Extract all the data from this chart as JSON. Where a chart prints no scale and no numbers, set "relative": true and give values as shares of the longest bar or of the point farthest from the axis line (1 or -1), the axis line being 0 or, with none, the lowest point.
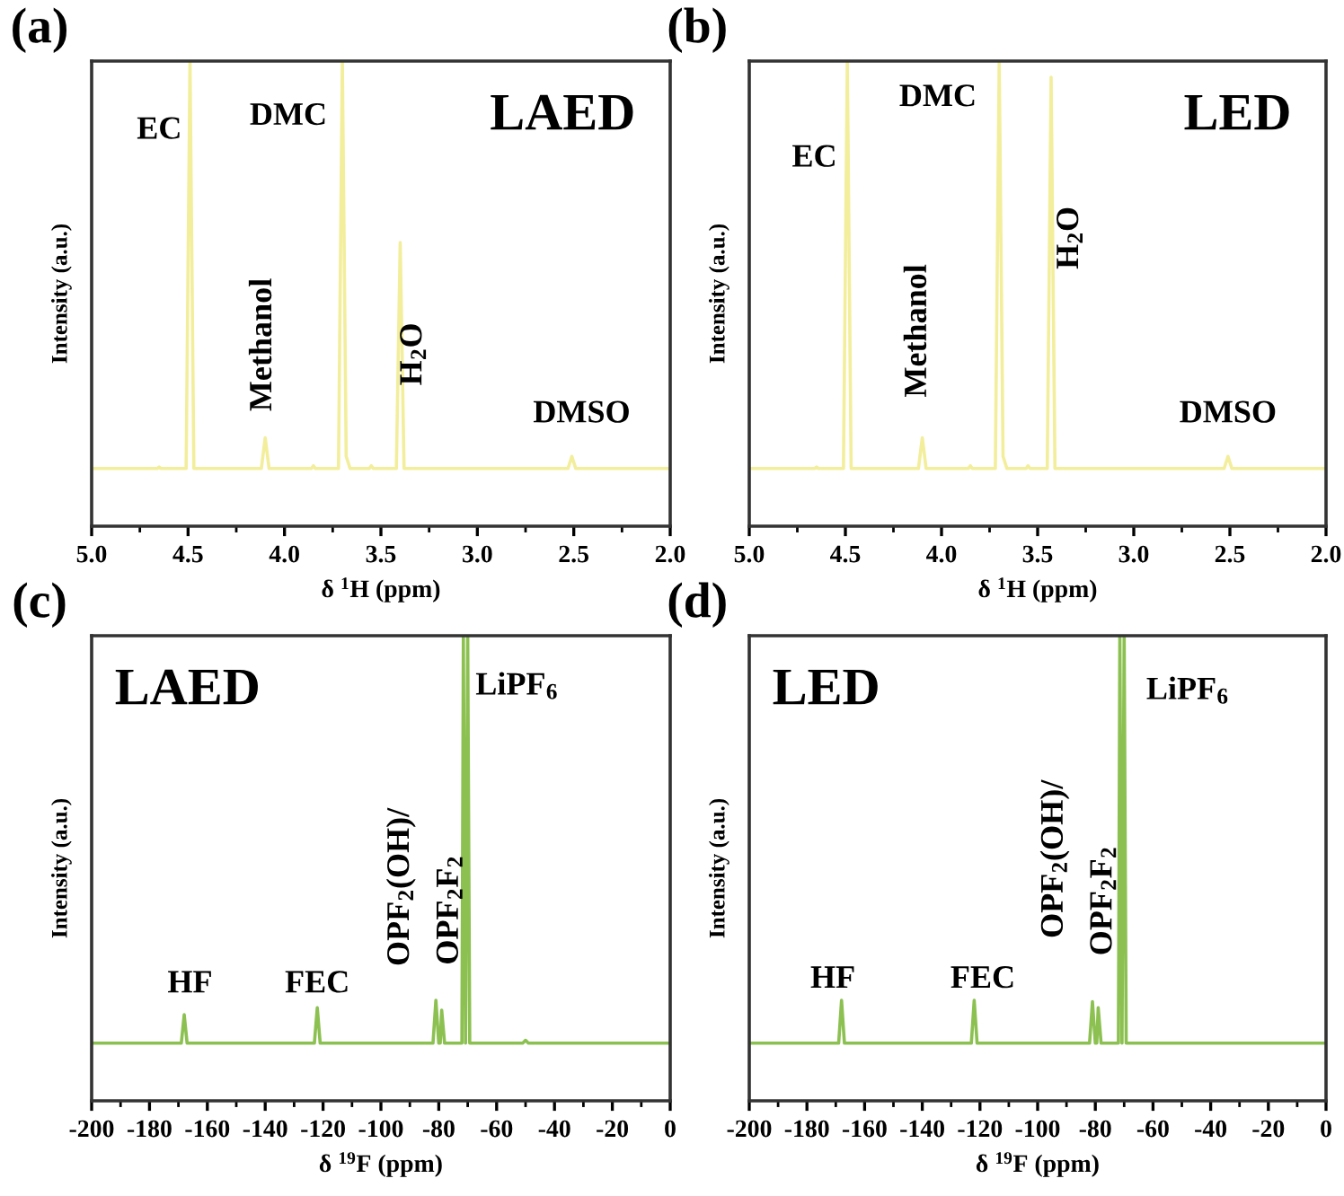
{
  "chart_data": [
    {
      "type": "line",
      "title": "(a)",
      "subtitle": "LAED",
      "xlabel": "δ $^{1}$H (ppm)",
      "ylabel": "Intensity (a.u.)",
      "relative": true,
      "tick_labels": "x",
      "xlim": [
        5.0,
        2.0
      ],
      "xticks": [
        {
          "value": 5.0,
          "label": "5.0"
        },
        {
          "value": 4.5,
          "label": "4.5"
        },
        {
          "value": 4.0,
          "label": "4.0"
        },
        {
          "value": 3.5,
          "label": "3.5"
        },
        {
          "value": 3.0,
          "label": "3.0"
        },
        {
          "value": 2.5,
          "label": "2.5"
        },
        {
          "value": 2.0,
          "label": "2.0"
        }
      ],
      "grid": false,
      "legend": false,
      "series": [
        {
          "color": "#f3ee9c",
          "x": [
            5.0,
            4.66,
            4.65,
            4.64,
            4.51,
            4.49,
            4.47,
            4.12,
            4.1,
            4.08,
            3.86,
            3.85,
            3.84,
            3.72,
            3.7,
            3.68,
            3.66,
            3.56,
            3.55,
            3.54,
            3.42,
            3.4,
            3.38,
            2.53,
            2.51,
            2.49,
            2.0
          ],
          "values": [
            0.124,
            0.124,
            0.127,
            0.124,
            0.124,
            1.0,
            0.124,
            0.124,
            0.19,
            0.124,
            0.124,
            0.13,
            0.124,
            0.124,
            1.0,
            0.15,
            0.124,
            0.124,
            0.13,
            0.124,
            0.124,
            0.61,
            0.124,
            0.124,
            0.15,
            0.124,
            0.124
          ]
        }
      ],
      "annotations": [
        "EC",
        "DMC",
        "Methanol",
        "H$_{2}$O",
        "DMSO"
      ]
    },
    {
      "type": "line",
      "title": "(b)",
      "subtitle": "LED",
      "xlabel": "δ $^{1}$H (ppm)",
      "ylabel": "Intensity (a.u.)",
      "relative": true,
      "tick_labels": "x",
      "xlim": [
        5.0,
        2.0
      ],
      "xticks": [
        {
          "value": 5.0,
          "label": "5.0"
        },
        {
          "value": 4.5,
          "label": "4.5"
        },
        {
          "value": 4.0,
          "label": "4.0"
        },
        {
          "value": 3.5,
          "label": "3.5"
        },
        {
          "value": 3.0,
          "label": "3.0"
        },
        {
          "value": 2.5,
          "label": "2.5"
        },
        {
          "value": 2.0,
          "label": "2.0"
        }
      ],
      "grid": false,
      "legend": false,
      "series": [
        {
          "color": "#f3ee9c",
          "x": [
            5.0,
            4.66,
            4.65,
            4.64,
            4.51,
            4.49,
            4.47,
            4.12,
            4.1,
            4.08,
            3.86,
            3.85,
            3.84,
            3.72,
            3.7,
            3.68,
            3.66,
            3.56,
            3.55,
            3.54,
            3.45,
            3.43,
            3.41,
            2.53,
            2.51,
            2.49,
            2.0
          ],
          "values": [
            0.124,
            0.124,
            0.127,
            0.124,
            0.124,
            1.0,
            0.124,
            0.124,
            0.19,
            0.124,
            0.124,
            0.13,
            0.124,
            0.124,
            1.0,
            0.15,
            0.124,
            0.124,
            0.13,
            0.124,
            0.124,
            0.965,
            0.124,
            0.124,
            0.15,
            0.124,
            0.124
          ]
        }
      ],
      "annotations": [
        "EC",
        "DMC",
        "Methanol",
        "H$_{2}$O",
        "DMSO"
      ]
    },
    {
      "type": "line",
      "title": "(c)",
      "subtitle": "LAED",
      "xlabel": "δ $^{19}$F (ppm)",
      "ylabel": "Intensity (a.u.)",
      "relative": true,
      "tick_labels": "x",
      "xlim": [
        -200,
        0
      ],
      "xticks": [
        -200,
        -180,
        -160,
        -140,
        -120,
        -100,
        -80,
        -60,
        -40,
        -20,
        0
      ],
      "grid": false,
      "legend": false,
      "series": [
        {
          "color": "#8cc152",
          "x": [
            -200,
            -169,
            -168,
            -167,
            -123,
            -122,
            -121,
            -82,
            -81,
            -80,
            -79.5,
            -79,
            -78,
            -72,
            -71.5,
            -70.75,
            -70,
            -69.3,
            -51,
            -50,
            -49,
            0
          ],
          "values": [
            0.124,
            0.124,
            0.185,
            0.124,
            0.124,
            0.2,
            0.124,
            0.124,
            0.216,
            0.124,
            0.124,
            0.195,
            0.124,
            0.124,
            1.0,
            0.124,
            1.0,
            0.124,
            0.124,
            0.13,
            0.124,
            0.124
          ]
        }
      ],
      "annotations": [
        "HF",
        "FEC",
        "OPF$_{2}$(OH)/",
        "OPF$_{2}$F$_{2}$",
        "LiPF$_{6}$"
      ]
    },
    {
      "type": "line",
      "title": "(d)",
      "subtitle": "LED",
      "xlabel": "δ $^{19}$F (ppm)",
      "ylabel": "Intensity (a.u.)",
      "relative": true,
      "tick_labels": "x",
      "xlim": [
        -200,
        0
      ],
      "xticks": [
        -200,
        -180,
        -160,
        -140,
        -120,
        -100,
        -80,
        -60,
        -40,
        -20,
        0
      ],
      "grid": false,
      "legend": false,
      "series": [
        {
          "color": "#8cc152",
          "x": [
            -200,
            -169,
            -168,
            -167,
            -123,
            -122,
            -121,
            -82,
            -81,
            -80,
            -79.5,
            -79,
            -78,
            -72,
            -71.5,
            -70.75,
            -70,
            -69.3,
            0
          ],
          "values": [
            0.124,
            0.124,
            0.216,
            0.124,
            0.124,
            0.216,
            0.124,
            0.124,
            0.213,
            0.124,
            0.124,
            0.2,
            0.124,
            0.124,
            1.0,
            0.124,
            1.0,
            0.124,
            0.124
          ]
        }
      ],
      "annotations": [
        "HF",
        "FEC",
        "OPF$_{2}$(OH)/",
        "OPF$_{2}$F$_{2}$",
        "LiPF$_{6}$"
      ]
    }
  ]
}
